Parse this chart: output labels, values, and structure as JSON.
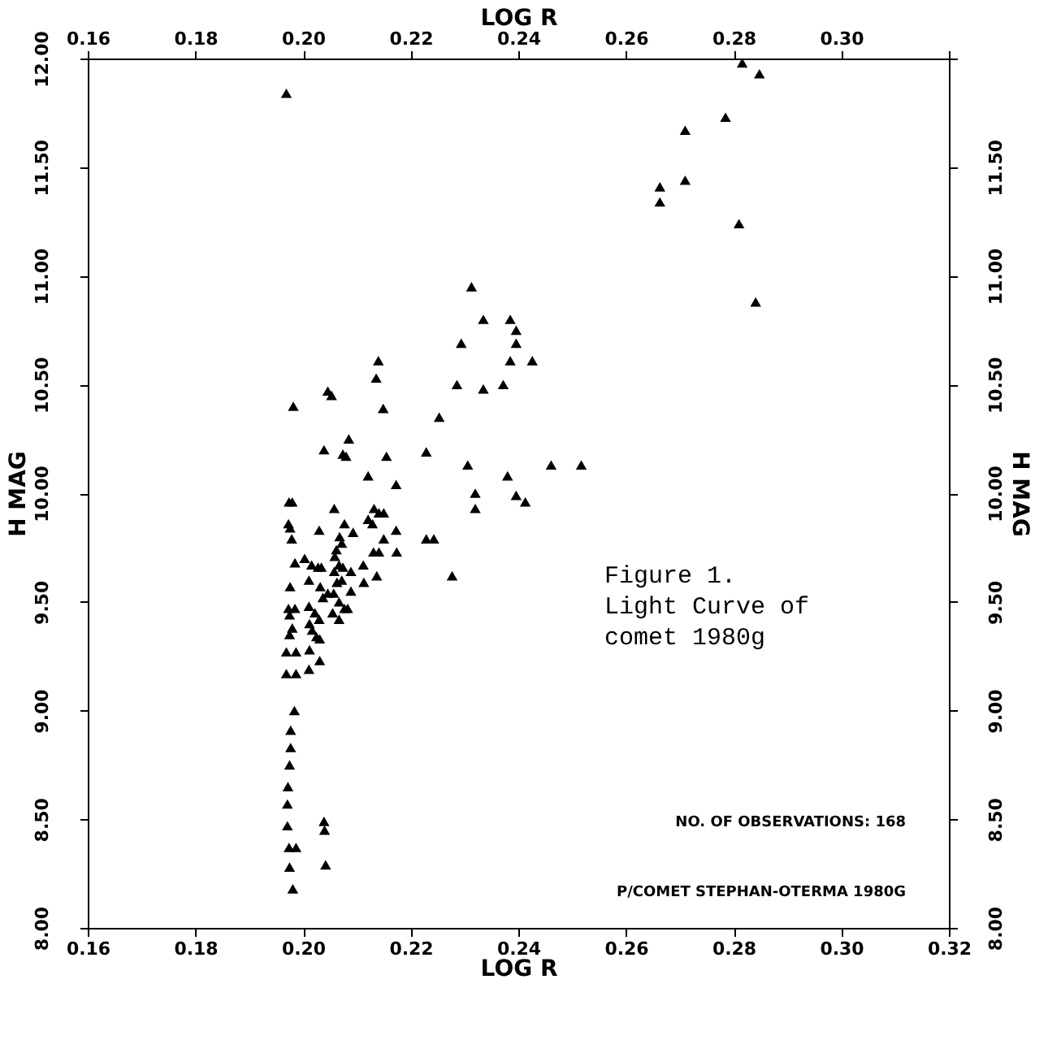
{
  "chart_data": {
    "type": "scatter",
    "xlabel": "LOG R",
    "x2label": "LOG R",
    "ylabel": "H MAG",
    "y2label": "H MAG",
    "marker": "triangle",
    "grid": false,
    "xlim": [
      0.16,
      0.32
    ],
    "x2lim": [
      0.16,
      0.32
    ],
    "ylim": [
      8,
      12
    ],
    "y2lim": [
      8,
      12
    ],
    "xticks": [
      {
        "value": 0.16,
        "label": "0.16"
      },
      {
        "value": 0.18,
        "label": "0.18"
      },
      {
        "value": 0.2,
        "label": "0.20"
      },
      {
        "value": 0.22,
        "label": "0.22"
      },
      {
        "value": 0.24,
        "label": "0.24"
      },
      {
        "value": 0.26,
        "label": "0.26"
      },
      {
        "value": 0.28,
        "label": "0.28"
      },
      {
        "value": 0.3,
        "label": "0.30"
      },
      {
        "value": 0.32,
        "label": "0.32"
      }
    ],
    "x2ticks": [
      {
        "value": 0.16,
        "label": "0.16"
      },
      {
        "value": 0.18,
        "label": "0.18"
      },
      {
        "value": 0.2,
        "label": "0.20"
      },
      {
        "value": 0.22,
        "label": "0.22"
      },
      {
        "value": 0.24,
        "label": "0.24"
      },
      {
        "value": 0.26,
        "label": "0.26"
      },
      {
        "value": 0.28,
        "label": "0.28"
      },
      {
        "value": 0.3,
        "label": "0.30"
      },
      {
        "value": 0.32,
        "label": null
      }
    ],
    "yticks": [
      {
        "value": 8,
        "label": "8.00"
      },
      {
        "value": 8.5,
        "label": "8.50"
      },
      {
        "value": 9,
        "label": "9.00"
      },
      {
        "value": 9.5,
        "label": "9.50"
      },
      {
        "value": 10,
        "label": "10.00"
      },
      {
        "value": 10.5,
        "label": "10.50"
      },
      {
        "value": 11,
        "label": "11.00"
      },
      {
        "value": 11.5,
        "label": "11.50"
      },
      {
        "value": 12,
        "label": "12.00"
      }
    ],
    "y2ticks": [
      {
        "value": 8,
        "label": "8.00"
      },
      {
        "value": 8.5,
        "label": "8.50"
      },
      {
        "value": 9,
        "label": "9.00"
      },
      {
        "value": 9.5,
        "label": "9.50"
      },
      {
        "value": 10,
        "label": "10.00"
      },
      {
        "value": 10.5,
        "label": "10.50"
      },
      {
        "value": 11,
        "label": "11.00"
      },
      {
        "value": 11.5,
        "label": "11.50"
      },
      {
        "value": 12,
        "label": null
      }
    ],
    "annotations": [
      "Figure 1.\nLight Curve of\ncomet 1980g",
      "NO. OF OBSERVATIONS: 168",
      "P/COMET STEPHAN-OTERMA 1980G"
    ],
    "series": [
      {
        "color": "#000000",
        "x": [
          0.1969,
          0.2313,
          0.2335,
          0.2385,
          0.2396,
          0.2294,
          0.2396,
          0.214,
          0.2385,
          0.2136,
          0.2286,
          0.2335,
          0.2372,
          0.2046,
          0.2053,
          0.1982,
          0.2149,
          0.2253,
          0.2085,
          0.2039,
          0.2074,
          0.208,
          0.2155,
          0.2229,
          0.2306,
          0.238,
          0.2121,
          0.2173,
          0.232,
          0.2396,
          0.232,
          0.1974,
          0.198,
          0.2058,
          0.2132,
          0.2141,
          0.215,
          0.2121,
          0.2129,
          0.1973,
          0.2077,
          0.203,
          0.2173,
          0.1976,
          0.2093,
          0.1979,
          0.2068,
          0.2072,
          0.215,
          0.2229,
          0.2243,
          0.2062,
          0.2131,
          0.2141,
          0.2174,
          0.2059,
          0.1985,
          0.2003,
          0.2016,
          0.2028,
          0.2034,
          0.2067,
          0.2112,
          0.2058,
          0.2074,
          0.2089,
          0.2137,
          0.2011,
          0.2072,
          0.2277,
          0.1976,
          0.2032,
          0.2063,
          0.2113,
          0.2089,
          0.2046,
          0.2057,
          0.2037,
          0.2067,
          0.2077,
          0.2083,
          0.2011,
          0.1973,
          0.1985,
          0.2022,
          0.203,
          0.2055,
          0.2067,
          0.1975,
          0.198,
          0.1975,
          0.2012,
          0.2017,
          0.2025,
          0.2031,
          0.1969,
          0.1987,
          0.2012,
          0.2031,
          0.2011,
          0.1969,
          0.1987,
          0.1984,
          0.1977,
          0.1977,
          0.1975,
          0.1972,
          0.1971,
          0.1971,
          0.2039,
          0.204,
          0.1974,
          0.1987,
          0.1981,
          0.2042,
          0.1975,
          0.2426,
          0.2461,
          0.2517,
          0.2413,
          0.2816,
          0.2848,
          0.2785,
          0.271,
          0.271,
          0.2663,
          0.2663,
          0.281,
          0.2841
        ],
        "values": [
          11.84,
          10.95,
          10.8,
          10.8,
          10.75,
          10.69,
          10.69,
          10.61,
          10.61,
          10.53,
          10.5,
          10.48,
          10.5,
          10.47,
          10.45,
          10.4,
          10.39,
          10.35,
          10.25,
          10.2,
          10.18,
          10.17,
          10.17,
          10.19,
          10.13,
          10.08,
          10.08,
          10.04,
          10.0,
          9.99,
          9.93,
          9.96,
          9.96,
          9.93,
          9.93,
          9.91,
          9.91,
          9.88,
          9.86,
          9.86,
          9.86,
          9.83,
          9.83,
          9.84,
          9.82,
          9.79,
          9.8,
          9.77,
          9.79,
          9.79,
          9.79,
          9.74,
          9.73,
          9.73,
          9.73,
          9.71,
          9.68,
          9.7,
          9.67,
          9.66,
          9.66,
          9.67,
          9.67,
          9.64,
          9.66,
          9.64,
          9.62,
          9.6,
          9.6,
          9.62,
          9.57,
          9.57,
          9.59,
          9.59,
          9.55,
          9.54,
          9.54,
          9.52,
          9.5,
          9.47,
          9.47,
          9.48,
          9.47,
          9.47,
          9.45,
          9.42,
          9.45,
          9.42,
          9.44,
          9.38,
          9.35,
          9.4,
          9.37,
          9.34,
          9.33,
          9.27,
          9.27,
          9.28,
          9.23,
          9.19,
          9.17,
          9.17,
          9.0,
          8.91,
          8.83,
          8.75,
          8.65,
          8.57,
          8.47,
          8.49,
          8.45,
          8.37,
          8.37,
          8.18,
          8.29,
          8.28,
          10.61,
          10.13,
          10.13,
          9.96,
          11.98,
          11.93,
          11.73,
          11.67,
          11.44,
          11.41,
          11.34,
          11.24,
          10.88
        ]
      }
    ]
  }
}
